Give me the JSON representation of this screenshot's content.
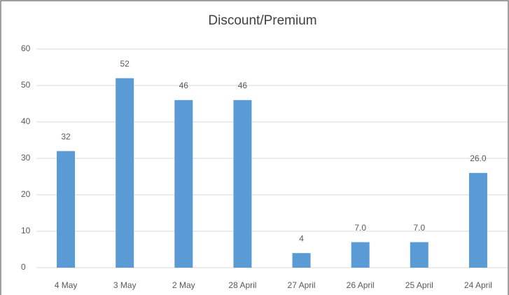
{
  "chart_data": {
    "type": "bar",
    "title": "Discount/Premium",
    "categories": [
      "4 May",
      "3 May",
      "2 May",
      "28 April",
      "27 April",
      "26 April",
      "25 April",
      "24 April"
    ],
    "values": [
      32,
      52,
      46,
      46,
      4,
      7,
      7,
      26
    ],
    "value_labels": [
      "32",
      "52",
      "46",
      "46",
      "4",
      "7.0",
      "7.0",
      "26.0"
    ],
    "color": "#5b9bd5",
    "ylim": [
      0,
      60
    ],
    "yticks": [
      0,
      10,
      20,
      30,
      40,
      50,
      60
    ],
    "grid": true
  }
}
